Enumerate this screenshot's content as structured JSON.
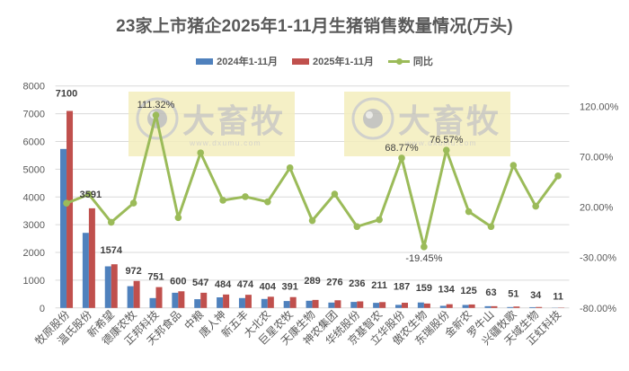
{
  "chart_data": {
    "type": "bar+line",
    "title": "23家上市猪企2025年1-11月生猪销售数量情况(万头)",
    "xlabel": "",
    "ylabel": "",
    "legend_position": "top",
    "grid": true,
    "categories": [
      "牧原股份",
      "温氏股份",
      "新希望",
      "德康农牧",
      "正邦科技",
      "天邦食品",
      "中粮",
      "唐人神",
      "新五丰",
      "大北农",
      "巨星农牧",
      "天康生物",
      "神农集团",
      "华统股份",
      "京基智农",
      "立华股份",
      "傲农生物",
      "东瑞股份",
      "金新农",
      "罗牛山",
      "兴疆牧歌",
      "天域生物",
      "正虹科技"
    ],
    "series": [
      {
        "name": "2024年1-11月",
        "type": "bar",
        "axis": "left",
        "color": "#4f81bd",
        "values": [
          5730,
          2706,
          1499,
          784,
          355,
          547,
          315,
          382,
          356,
          324,
          249,
          259,
          194,
          217,
          184,
          111,
          197,
          76,
          108,
          63,
          32,
          28,
          7
        ]
      },
      {
        "name": "2025年1-11月",
        "type": "bar",
        "axis": "left",
        "color": "#c0504d",
        "values": [
          7100,
          3591,
          1574,
          972,
          751,
          600,
          547,
          484,
          474,
          404,
          391,
          289,
          276,
          236,
          211,
          187,
          159,
          134,
          125,
          63,
          51,
          34,
          11
        ]
      },
      {
        "name": "同比",
        "type": "line",
        "axis": "right",
        "color": "#9bbb59",
        "unit": "%",
        "values": [
          23.9,
          32.7,
          5.0,
          24.0,
          111.32,
          9.6,
          73.9,
          26.8,
          30.4,
          25.3,
          59.0,
          6.7,
          33.0,
          0.7,
          7.6,
          68.77,
          -19.45,
          76.57,
          15.6,
          0.7,
          61.5,
          20.9,
          51.0
        ]
      }
    ],
    "bar_labels": [
      "7100",
      "3591",
      "1574",
      "972",
      "751",
      "600",
      "547",
      "484",
      "474",
      "404",
      "391",
      "289",
      "276",
      "236",
      "211",
      "187",
      "159",
      "134",
      "125",
      "63",
      "51",
      "34",
      "11"
    ],
    "line_labels": [
      {
        "index": 4,
        "text": "111.32%"
      },
      {
        "index": 15,
        "text": "68.77%"
      },
      {
        "index": 16,
        "text": "-19.45%"
      },
      {
        "index": 17,
        "text": "76.57%"
      }
    ],
    "y_left": {
      "ylim": [
        0,
        8000
      ],
      "ticks": [
        "0",
        "1000",
        "2000",
        "3000",
        "4000",
        "5000",
        "6000",
        "7000",
        "8000"
      ]
    },
    "y_right": {
      "ylim": [
        -80,
        140
      ],
      "ticks": [
        "-80.00%",
        "-30.00%",
        "20.00%",
        "70.00%",
        "120.00%"
      ],
      "tick_values": [
        -80,
        -30,
        20,
        70,
        120
      ]
    }
  },
  "watermark": {
    "text": "大畜牧",
    "url_text": "www.dxumu.com"
  },
  "colors": {
    "bar_2024": "#4f81bd",
    "bar_2025": "#c0504d",
    "line_yoy": "#9bbb59",
    "grid": "#d9d9d9",
    "text": "#595959"
  }
}
